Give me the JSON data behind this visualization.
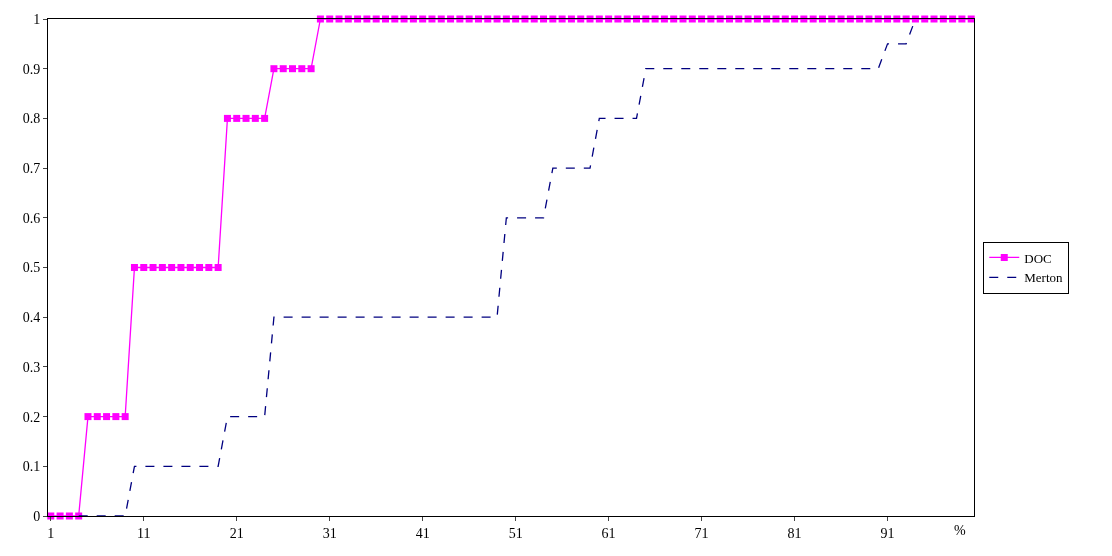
{
  "chart_data": {
    "type": "line",
    "xlabel": "%",
    "x": [
      1,
      2,
      3,
      4,
      5,
      6,
      7,
      8,
      9,
      10,
      11,
      12,
      13,
      14,
      15,
      16,
      17,
      18,
      19,
      20,
      21,
      22,
      23,
      24,
      25,
      26,
      27,
      28,
      29,
      30,
      31,
      32,
      33,
      34,
      35,
      36,
      37,
      38,
      39,
      40,
      41,
      42,
      43,
      44,
      45,
      46,
      47,
      48,
      49,
      50,
      51,
      52,
      53,
      54,
      55,
      56,
      57,
      58,
      59,
      60,
      61,
      62,
      63,
      64,
      65,
      66,
      67,
      68,
      69,
      70,
      71,
      72,
      73,
      74,
      75,
      76,
      77,
      78,
      79,
      80,
      81,
      82,
      83,
      84,
      85,
      86,
      87,
      88,
      89,
      90,
      91,
      92,
      93,
      94,
      95,
      96,
      97,
      98,
      99,
      100
    ],
    "series": [
      {
        "name": "DOC",
        "color": "#ff00ff",
        "marker": "square",
        "line_style": "solid",
        "values": [
          0,
          0,
          0,
          0,
          0.2,
          0.2,
          0.2,
          0.2,
          0.2,
          0.5,
          0.5,
          0.5,
          0.5,
          0.5,
          0.5,
          0.5,
          0.5,
          0.5,
          0.5,
          0.8,
          0.8,
          0.8,
          0.8,
          0.8,
          0.9,
          0.9,
          0.9,
          0.9,
          0.9,
          1,
          1,
          1,
          1,
          1,
          1,
          1,
          1,
          1,
          1,
          1,
          1,
          1,
          1,
          1,
          1,
          1,
          1,
          1,
          1,
          1,
          1,
          1,
          1,
          1,
          1,
          1,
          1,
          1,
          1,
          1,
          1,
          1,
          1,
          1,
          1,
          1,
          1,
          1,
          1,
          1,
          1,
          1,
          1,
          1,
          1,
          1,
          1,
          1,
          1,
          1,
          1,
          1,
          1,
          1,
          1,
          1,
          1,
          1,
          1,
          1,
          1,
          1,
          1,
          1,
          1,
          1,
          1,
          1,
          1,
          1
        ]
      },
      {
        "name": "Merton",
        "color": "#000080",
        "marker": "none",
        "line_style": "dashed",
        "values": [
          null,
          null,
          null,
          0,
          0,
          0,
          0,
          0,
          0,
          0.1,
          0.1,
          0.1,
          0.1,
          0.1,
          0.1,
          0.1,
          0.1,
          0.1,
          0.1,
          0.2,
          0.2,
          0.2,
          0.2,
          0.2,
          0.4,
          0.4,
          0.4,
          0.4,
          0.4,
          0.4,
          0.4,
          0.4,
          0.4,
          0.4,
          0.4,
          0.4,
          0.4,
          0.4,
          0.4,
          0.4,
          0.4,
          0.4,
          0.4,
          0.4,
          0.4,
          0.4,
          0.4,
          0.4,
          0.4,
          0.6,
          0.6,
          0.6,
          0.6,
          0.6,
          0.7,
          0.7,
          0.7,
          0.7,
          0.7,
          0.8,
          0.8,
          0.8,
          0.8,
          0.8,
          0.9,
          0.9,
          0.9,
          0.9,
          0.9,
          0.9,
          0.9,
          0.9,
          0.9,
          0.9,
          0.9,
          0.9,
          0.9,
          0.9,
          0.9,
          0.9,
          0.9,
          0.9,
          0.9,
          0.9,
          0.9,
          0.9,
          0.9,
          0.9,
          0.9,
          0.9,
          0.95,
          0.95,
          0.95,
          1,
          null,
          null,
          null,
          null,
          null,
          null
        ]
      }
    ],
    "xlim": [
      0.7,
      100.3
    ],
    "xticks": [
      1,
      11,
      21,
      31,
      41,
      51,
      61,
      71,
      81,
      91
    ],
    "ylim": [
      0,
      1
    ],
    "yticks": [
      0,
      0.1,
      0.2,
      0.3,
      0.4,
      0.5,
      0.6,
      0.7,
      0.8,
      0.9,
      1
    ],
    "legend": "right"
  }
}
